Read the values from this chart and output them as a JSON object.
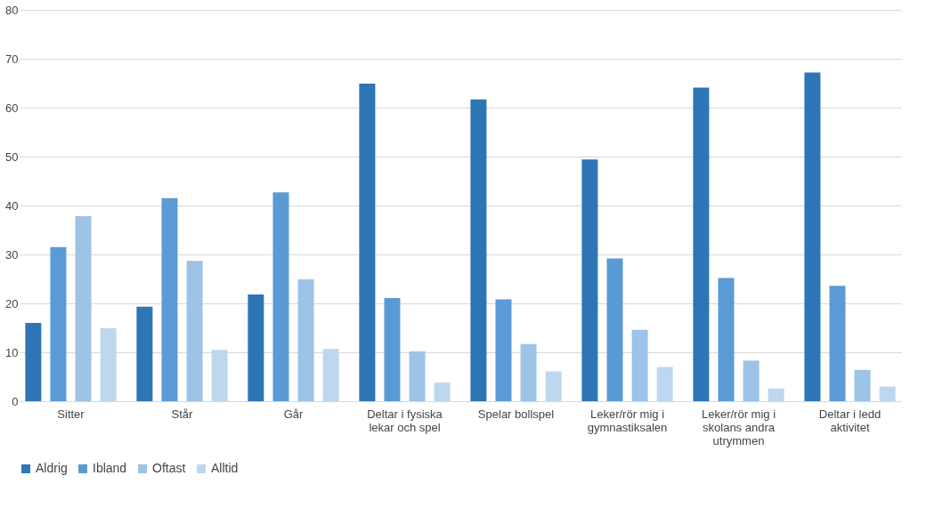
{
  "chart_data": {
    "type": "bar",
    "categories": [
      "Sitter",
      "Står",
      "Går",
      "Deltar i fysiska lekar och spel",
      "Spelar bollspel",
      "Leker/rör mig i gymnastiksalen",
      "Leker/rör mig i skolans andra utrymmen",
      "Deltar i ledd aktivitet"
    ],
    "series": [
      {
        "name": "Aldrig",
        "color": "#2e75b6",
        "values": [
          16.0,
          19.3,
          21.8,
          64.9,
          61.7,
          49.4,
          64.1,
          67.2
        ]
      },
      {
        "name": "Ibland",
        "color": "#5b9bd5",
        "values": [
          31.5,
          41.5,
          42.7,
          21.1,
          20.8,
          29.2,
          25.2,
          23.6
        ]
      },
      {
        "name": "Oftast",
        "color": "#9dc3e6",
        "values": [
          37.8,
          28.7,
          24.9,
          10.2,
          11.7,
          14.6,
          8.3,
          6.4
        ]
      },
      {
        "name": "Alltid",
        "color": "#bdd7ee",
        "values": [
          14.9,
          10.5,
          10.7,
          3.8,
          6.1,
          7.0,
          2.6,
          3.0
        ]
      }
    ],
    "ylim": [
      0,
      80
    ],
    "yticks": [
      0,
      10,
      20,
      30,
      40,
      50,
      60,
      70,
      80
    ],
    "grid": "y",
    "legend": "bottom"
  }
}
